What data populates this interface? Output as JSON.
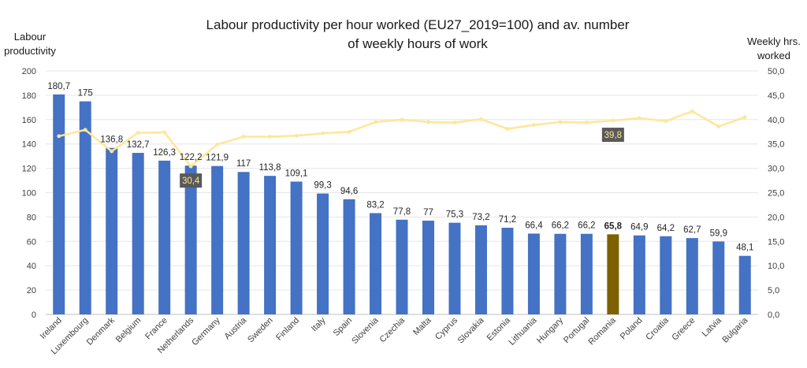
{
  "chart_data": {
    "type": "bar",
    "title_line1": "Labour productivity per hour worked (EU27_2019=100) and av. number",
    "title_line2": "of weekly hours of work",
    "ylabel_left": "Labour productivity",
    "ylabel_right": "Weekly hrs. worked",
    "ylim_left": [
      0,
      200
    ],
    "ylim_right": [
      0,
      50
    ],
    "yticks_left": [
      "0",
      "20",
      "40",
      "60",
      "80",
      "100",
      "120",
      "140",
      "160",
      "180",
      "200"
    ],
    "yticks_right": [
      "0,0",
      "5,0",
      "10,0",
      "15,0",
      "20,0",
      "25,0",
      "30,0",
      "35,0",
      "40,0",
      "45,0",
      "50,0"
    ],
    "categories": [
      "Ireland",
      "Luxembourg",
      "Denmark",
      "Belgium",
      "France",
      "Netherlands",
      "Germany",
      "Austria",
      "Sweden",
      "Finland",
      "Italy",
      "Spain",
      "Slovenia",
      "Czechia",
      "Malta",
      "Cyprus",
      "Slovakia",
      "Estonia",
      "Lithuania",
      "Hungary",
      "Portugal",
      "Romania",
      "Poland",
      "Croatia",
      "Greece",
      "Latvia",
      "Bulgaria"
    ],
    "series": [
      {
        "values": [
          180.7,
          175,
          136.8,
          132.7,
          126.3,
          122.2,
          121.9,
          117,
          113.8,
          109.1,
          99.3,
          94.6,
          83.2,
          77.8,
          77,
          75.3,
          73.2,
          71.2,
          66.4,
          66.2,
          66.2,
          65.8,
          64.9,
          64.2,
          62.7,
          59.9,
          48.1
        ],
        "labels": [
          "180,7",
          "175",
          "136,8",
          "132,7",
          "126,3",
          "122,2",
          "121,9",
          "117",
          "113,8",
          "109,1",
          "99,3",
          "94,6",
          "83,2",
          "77,8",
          "77",
          "75,3",
          "73,2",
          "71,2",
          "66,4",
          "66,2",
          "66,2",
          "65,8",
          "64,9",
          "64,2",
          "62,7",
          "59,9",
          "48,1"
        ]
      },
      {
        "values": [
          36.6,
          37.9,
          33.5,
          37.3,
          37.4,
          30.4,
          34.9,
          36.5,
          36.5,
          36.7,
          37.2,
          37.5,
          39.5,
          40,
          39.5,
          39.4,
          40.1,
          38.1,
          38.9,
          39.5,
          39.4,
          39.8,
          40.3,
          39.7,
          41.7,
          38.6,
          40.5
        ]
      }
    ],
    "annotations": [
      {
        "category": "Netherlands",
        "text": "30,4"
      },
      {
        "category": "Romania",
        "text": "39,8"
      }
    ],
    "highlight_category": "Romania",
    "colors": {
      "bar": "#4472c4",
      "highlight_bar": "#7f6000",
      "line": "#ffe699",
      "annotation_bg": "#595959",
      "annotation_text": "#ffe699",
      "grid": "#e6e6e6"
    },
    "grid": true,
    "legend": "none"
  }
}
